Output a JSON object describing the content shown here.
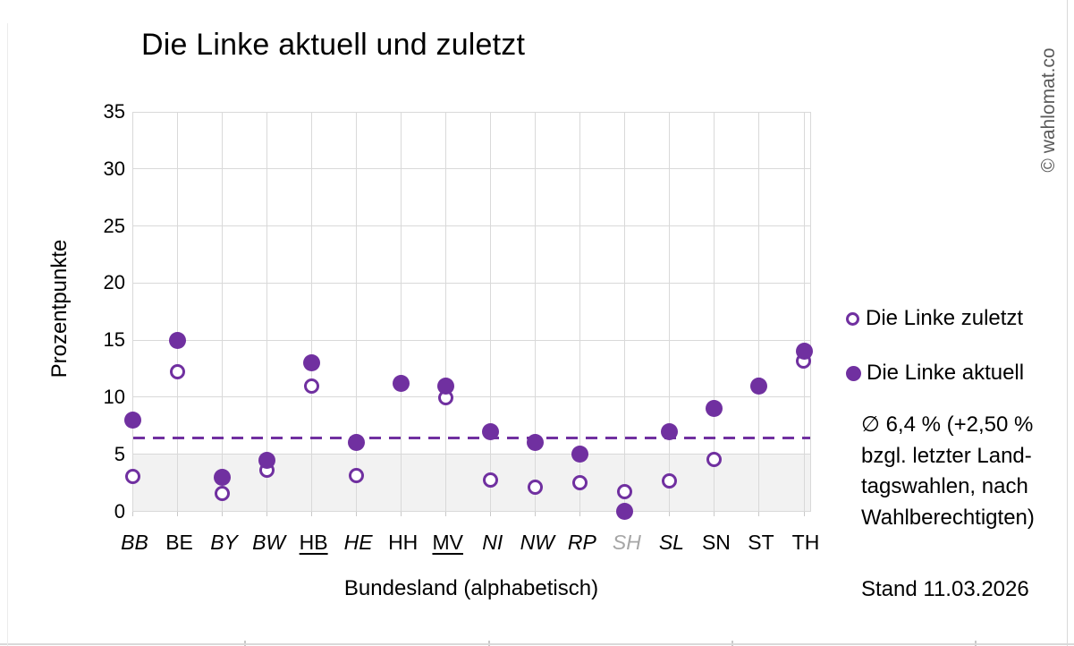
{
  "title": "Die Linke aktuell und zuletzt",
  "watermark": "© wahlomat.co",
  "footer": {
    "stand": "Stand 11.03.2026"
  },
  "annotation": {
    "lines": [
      "∅ 6,4 % (+2,50 %",
      "bzgl. letzter Land-",
      "tagswahlen, nach",
      "Wahlberechtigten)"
    ]
  },
  "colors": {
    "accent": "#7030A0",
    "grid": "#d9d9d9",
    "threshold_band": "#f2f2f2",
    "muted_label": "#a6a6a6",
    "watermark": "#595959"
  },
  "chart_data": {
    "type": "scatter",
    "title": "Die Linke aktuell und zuletzt",
    "xlabel": "Bundesland (alphabetisch)",
    "ylabel": "Prozentpunkte",
    "ylim": [
      0,
      35
    ],
    "ytick_step": 5,
    "grid": true,
    "legend_position": "right",
    "categories": [
      {
        "code": "BB",
        "italic": true,
        "underline": false,
        "muted": false
      },
      {
        "code": "BE",
        "italic": false,
        "underline": false,
        "muted": false
      },
      {
        "code": "BY",
        "italic": true,
        "underline": false,
        "muted": false
      },
      {
        "code": "BW",
        "italic": true,
        "underline": false,
        "muted": false
      },
      {
        "code": "HB",
        "italic": false,
        "underline": true,
        "muted": false
      },
      {
        "code": "HE",
        "italic": true,
        "underline": false,
        "muted": false
      },
      {
        "code": "HH",
        "italic": false,
        "underline": false,
        "muted": false
      },
      {
        "code": "MV",
        "italic": false,
        "underline": true,
        "muted": false
      },
      {
        "code": "NI",
        "italic": true,
        "underline": false,
        "muted": false
      },
      {
        "code": "NW",
        "italic": true,
        "underline": false,
        "muted": false
      },
      {
        "code": "RP",
        "italic": true,
        "underline": false,
        "muted": false
      },
      {
        "code": "SH",
        "italic": true,
        "underline": false,
        "muted": true
      },
      {
        "code": "SL",
        "italic": true,
        "underline": false,
        "muted": false
      },
      {
        "code": "SN",
        "italic": false,
        "underline": false,
        "muted": false
      },
      {
        "code": "ST",
        "italic": false,
        "underline": false,
        "muted": false
      },
      {
        "code": "TH",
        "italic": false,
        "underline": false,
        "muted": false
      }
    ],
    "series": [
      {
        "name": "Die Linke zuletzt",
        "marker": "open-circle",
        "values": [
          3.0,
          12.2,
          1.5,
          3.6,
          10.9,
          3.1,
          11.2,
          9.9,
          2.7,
          2.1,
          2.5,
          1.7,
          2.6,
          4.5,
          11.0,
          13.1
        ]
      },
      {
        "name": "Die Linke aktuell",
        "marker": "filled-circle",
        "values": [
          8,
          15,
          3,
          4.5,
          13,
          6,
          11.2,
          11,
          7,
          6,
          5,
          0,
          7,
          9,
          11,
          14
        ]
      }
    ],
    "average_line": {
      "value": 6.4,
      "style": "dashed"
    },
    "threshold_band": {
      "from": 0,
      "to": 5
    }
  }
}
